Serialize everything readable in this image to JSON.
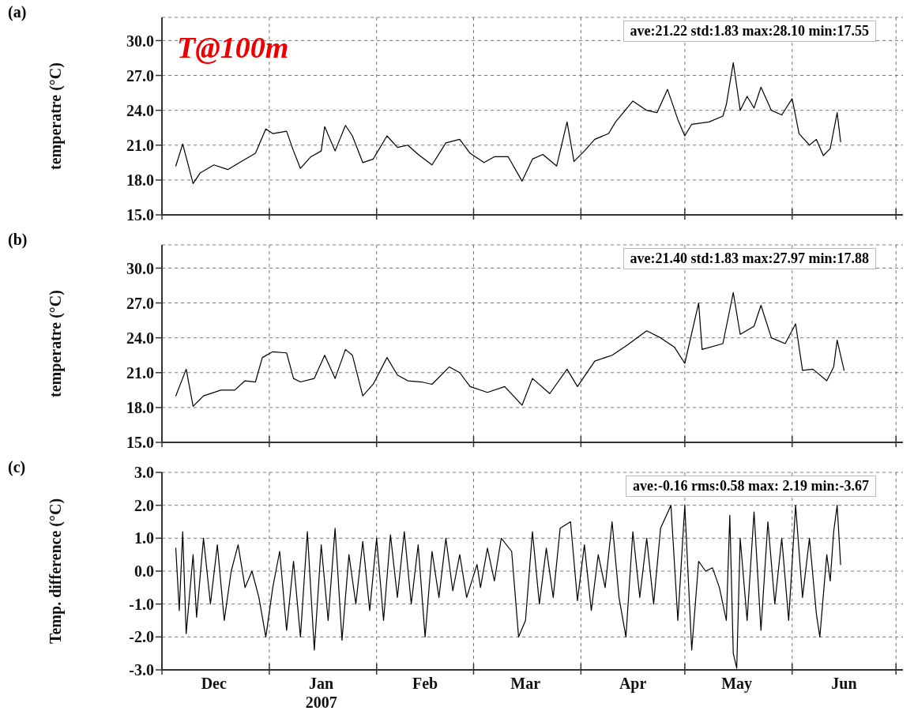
{
  "chart_data": [
    {
      "type": "line",
      "ylabel": "temperatre (°C)",
      "annotations": [
        "(a)",
        "ave:21.22 std:1.83 max:28.10 min:17.55",
        "T@100m"
      ],
      "series": [
        {
          "color": "#000000",
          "x": [
            "2006-12-05",
            "2006-12-07",
            "2006-12-10",
            "2006-12-12",
            "2006-12-16",
            "2006-12-20",
            "2006-12-24",
            "2006-12-28",
            "2006-12-31",
            "2007-01-02",
            "2007-01-06",
            "2007-01-08",
            "2007-01-10",
            "2007-01-13",
            "2007-01-16",
            "2007-01-17",
            "2007-01-20",
            "2007-01-23",
            "2007-01-25",
            "2007-01-28",
            "2007-01-31",
            "2007-02-04",
            "2007-02-07",
            "2007-02-10",
            "2007-02-13",
            "2007-02-17",
            "2007-02-21",
            "2007-02-25",
            "2007-02-28",
            "2007-03-04",
            "2007-03-07",
            "2007-03-11",
            "2007-03-15",
            "2007-03-18",
            "2007-03-21",
            "2007-03-25",
            "2007-03-28",
            "2007-03-30",
            "2007-04-02",
            "2007-04-05",
            "2007-04-09",
            "2007-04-11",
            "2007-04-16",
            "2007-04-20",
            "2007-04-23",
            "2007-04-26",
            "2007-04-29",
            "2007-05-01",
            "2007-05-03",
            "2007-05-08",
            "2007-05-12",
            "2007-05-13",
            "2007-05-15",
            "2007-05-17",
            "2007-05-19",
            "2007-05-21",
            "2007-05-23",
            "2007-05-26",
            "2007-05-29",
            "2007-06-01",
            "2007-06-03",
            "2007-06-06",
            "2007-06-08",
            "2007-06-10",
            "2007-06-12",
            "2007-06-14",
            "2007-06-15"
          ],
          "values": [
            19.2,
            21.1,
            17.7,
            18.6,
            19.3,
            18.9,
            19.6,
            20.3,
            22.4,
            22.0,
            22.2,
            20.5,
            19.0,
            20.0,
            20.5,
            22.6,
            20.5,
            22.7,
            21.8,
            19.5,
            19.8,
            21.8,
            20.8,
            21.0,
            20.2,
            19.3,
            21.2,
            21.5,
            20.3,
            19.5,
            20.0,
            20.0,
            17.9,
            19.8,
            20.2,
            19.2,
            23.0,
            19.6,
            20.5,
            21.5,
            22.0,
            23.0,
            24.8,
            24.0,
            23.8,
            25.8,
            23.2,
            21.8,
            22.8,
            23.0,
            23.5,
            24.5,
            28.1,
            24.0,
            25.2,
            24.2,
            26.0,
            24.0,
            23.6,
            25.0,
            22.0,
            21.0,
            21.5,
            20.1,
            20.7,
            23.8,
            21.3
          ]
        }
      ],
      "xlim": [
        "2006-12-01",
        "2007-07-03"
      ],
      "xticks": [
        {
          "value": "2006-12-01",
          "label": null
        },
        {
          "value": "2007-01-01",
          "label": null
        },
        {
          "value": "2007-02-01",
          "label": null
        },
        {
          "value": "2007-03-01",
          "label": null
        },
        {
          "value": "2007-04-01",
          "label": null
        },
        {
          "value": "2007-05-01",
          "label": null
        },
        {
          "value": "2007-06-01",
          "label": null
        },
        {
          "value": "2007-07-01",
          "label": null
        }
      ],
      "ylim": [
        15,
        32
      ],
      "yticks": [
        {
          "value": 15,
          "label": "15.0"
        },
        {
          "value": 18,
          "label": "18.0"
        },
        {
          "value": 21,
          "label": "21.0"
        },
        {
          "value": 24,
          "label": "24.0"
        },
        {
          "value": 27,
          "label": "27.0"
        },
        {
          "value": 30,
          "label": "30.0"
        }
      ],
      "grid": true,
      "tick_labels": "y"
    },
    {
      "type": "line",
      "ylabel": "temperatre (°C)",
      "annotations": [
        "(b)",
        "ave:21.40 std:1.83 max:27.97 min:17.88"
      ],
      "series": [
        {
          "color": "#000000",
          "x": [
            "2006-12-05",
            "2006-12-08",
            "2006-12-10",
            "2006-12-13",
            "2006-12-18",
            "2006-12-22",
            "2006-12-25",
            "2006-12-28",
            "2006-12-30",
            "2007-01-02",
            "2007-01-06",
            "2007-01-08",
            "2007-01-10",
            "2007-01-14",
            "2007-01-17",
            "2007-01-20",
            "2007-01-23",
            "2007-01-25",
            "2007-01-28",
            "2007-01-31",
            "2007-02-04",
            "2007-02-07",
            "2007-02-10",
            "2007-02-14",
            "2007-02-17",
            "2007-02-22",
            "2007-02-25",
            "2007-02-28",
            "2007-03-05",
            "2007-03-10",
            "2007-03-15",
            "2007-03-18",
            "2007-03-23",
            "2007-03-28",
            "2007-03-31",
            "2007-04-05",
            "2007-04-10",
            "2007-04-14",
            "2007-04-20",
            "2007-04-24",
            "2007-04-28",
            "2007-05-01",
            "2007-05-05",
            "2007-05-06",
            "2007-05-12",
            "2007-05-15",
            "2007-05-17",
            "2007-05-21",
            "2007-05-23",
            "2007-05-26",
            "2007-05-30",
            "2007-06-02",
            "2007-06-04",
            "2007-06-07",
            "2007-06-11",
            "2007-06-13",
            "2007-06-14",
            "2007-06-16"
          ],
          "values": [
            19.0,
            21.3,
            18.1,
            19.0,
            19.5,
            19.5,
            20.3,
            20.2,
            22.3,
            22.8,
            22.7,
            20.5,
            20.2,
            20.5,
            22.5,
            20.5,
            23.0,
            22.5,
            19.0,
            20.0,
            22.3,
            20.8,
            20.3,
            20.2,
            20.0,
            21.5,
            21.0,
            19.8,
            19.3,
            19.8,
            18.2,
            20.5,
            19.2,
            21.3,
            19.8,
            22.0,
            22.5,
            23.3,
            24.6,
            24.0,
            23.2,
            21.8,
            27.0,
            23.0,
            23.5,
            27.9,
            24.3,
            25.0,
            26.8,
            24.0,
            23.5,
            25.2,
            21.2,
            21.3,
            20.3,
            21.5,
            23.8,
            21.2
          ]
        }
      ],
      "xlim": [
        "2006-12-01",
        "2007-07-03"
      ],
      "xticks": [
        {
          "value": "2006-12-01",
          "label": null
        },
        {
          "value": "2007-01-01",
          "label": null
        },
        {
          "value": "2007-02-01",
          "label": null
        },
        {
          "value": "2007-03-01",
          "label": null
        },
        {
          "value": "2007-04-01",
          "label": null
        },
        {
          "value": "2007-05-01",
          "label": null
        },
        {
          "value": "2007-06-01",
          "label": null
        },
        {
          "value": "2007-07-01",
          "label": null
        }
      ],
      "ylim": [
        15,
        32
      ],
      "yticks": [
        {
          "value": 15,
          "label": "15.0"
        },
        {
          "value": 18,
          "label": "18.0"
        },
        {
          "value": 21,
          "label": "21.0"
        },
        {
          "value": 24,
          "label": "24.0"
        },
        {
          "value": 27,
          "label": "27.0"
        },
        {
          "value": 30,
          "label": "30.0"
        }
      ],
      "grid": true,
      "tick_labels": "y"
    },
    {
      "type": "line",
      "ylabel": "Temp. difference (°C)",
      "annotations": [
        "(c)",
        "ave:-0.16 rms:0.58 max: 2.19 min:-3.67"
      ],
      "series": [
        {
          "color": "#000000",
          "x": [
            "2006-12-05",
            "2006-12-06",
            "2006-12-07",
            "2006-12-08",
            "2006-12-10",
            "2006-12-11",
            "2006-12-13",
            "2006-12-15",
            "2006-12-17",
            "2006-12-19",
            "2006-12-21",
            "2006-12-23",
            "2006-12-25",
            "2006-12-27",
            "2006-12-29",
            "2006-12-31",
            "2007-01-02",
            "2007-01-04",
            "2007-01-06",
            "2007-01-08",
            "2007-01-10",
            "2007-01-12",
            "2007-01-14",
            "2007-01-16",
            "2007-01-18",
            "2007-01-20",
            "2007-01-22",
            "2007-01-24",
            "2007-01-26",
            "2007-01-28",
            "2007-01-30",
            "2007-02-01",
            "2007-02-03",
            "2007-02-05",
            "2007-02-07",
            "2007-02-09",
            "2007-02-11",
            "2007-02-13",
            "2007-02-15",
            "2007-02-17",
            "2007-02-19",
            "2007-02-21",
            "2007-02-23",
            "2007-02-25",
            "2007-02-27",
            "2007-03-02",
            "2007-03-03",
            "2007-03-05",
            "2007-03-07",
            "2007-03-09",
            "2007-03-12",
            "2007-03-14",
            "2007-03-16",
            "2007-03-18",
            "2007-03-20",
            "2007-03-22",
            "2007-03-24",
            "2007-03-26",
            "2007-03-29",
            "2007-03-31",
            "2007-04-02",
            "2007-04-04",
            "2007-04-06",
            "2007-04-08",
            "2007-04-10",
            "2007-04-12",
            "2007-04-14",
            "2007-04-16",
            "2007-04-18",
            "2007-04-20",
            "2007-04-22",
            "2007-04-24",
            "2007-04-27",
            "2007-04-29",
            "2007-05-01",
            "2007-05-03",
            "2007-05-05",
            "2007-05-07",
            "2007-05-09",
            "2007-05-11",
            "2007-05-13",
            "2007-05-14",
            "2007-05-15",
            "2007-05-16",
            "2007-05-17",
            "2007-05-19",
            "2007-05-21",
            "2007-05-23",
            "2007-05-25",
            "2007-05-27",
            "2007-05-29",
            "2007-05-31",
            "2007-06-02",
            "2007-06-04",
            "2007-06-06",
            "2007-06-08",
            "2007-06-09",
            "2007-06-11",
            "2007-06-12",
            "2007-06-13",
            "2007-06-14",
            "2007-06-15"
          ],
          "values": [
            0.7,
            -1.2,
            1.2,
            -1.9,
            0.5,
            -1.4,
            1.0,
            -1.0,
            0.8,
            -1.5,
            0.0,
            0.8,
            -0.5,
            0.0,
            -0.8,
            -2.0,
            -0.5,
            0.6,
            -1.8,
            0.3,
            -2.0,
            1.2,
            -2.4,
            0.8,
            -1.5,
            1.3,
            -2.1,
            0.5,
            -1.0,
            0.9,
            -1.2,
            1.0,
            -1.5,
            1.1,
            -0.8,
            1.2,
            -1.0,
            0.8,
            -2.0,
            0.6,
            -0.8,
            1.0,
            -0.6,
            0.5,
            -0.8,
            0.2,
            -0.5,
            0.7,
            -0.3,
            1.0,
            0.6,
            -2.0,
            -1.5,
            1.2,
            -1.0,
            0.7,
            -0.8,
            1.3,
            1.5,
            -0.9,
            0.8,
            -1.2,
            0.5,
            -0.5,
            1.5,
            -0.8,
            -2.0,
            1.2,
            -0.8,
            1.0,
            -1.0,
            1.3,
            2.0,
            -1.5,
            2.0,
            -2.4,
            0.3,
            0.0,
            0.1,
            -0.5,
            -1.5,
            1.7,
            -2.5,
            -2.95,
            1.0,
            -1.5,
            1.8,
            -1.8,
            1.5,
            -1.0,
            1.0,
            -1.5,
            2.0,
            -0.8,
            1.0,
            -1.3,
            -2.0,
            0.5,
            -0.3,
            1.2,
            2.0,
            0.2
          ]
        }
      ],
      "xlim": [
        "2006-12-01",
        "2007-07-03"
      ],
      "xticks": [
        {
          "value": "2006-12-01",
          "label": null
        },
        {
          "value": "2006-12-16",
          "label": "Dec"
        },
        {
          "value": "2007-01-01",
          "label": null
        },
        {
          "value": "2007-01-16",
          "label": "Jan\n2007"
        },
        {
          "value": "2007-02-01",
          "label": null
        },
        {
          "value": "2007-02-15",
          "label": "Feb"
        },
        {
          "value": "2007-03-01",
          "label": null
        },
        {
          "value": "2007-03-16",
          "label": "Mar"
        },
        {
          "value": "2007-04-01",
          "label": null
        },
        {
          "value": "2007-04-16",
          "label": "Apr"
        },
        {
          "value": "2007-05-01",
          "label": null
        },
        {
          "value": "2007-05-16",
          "label": "May"
        },
        {
          "value": "2007-06-01",
          "label": null
        },
        {
          "value": "2007-06-16",
          "label": "Jun"
        },
        {
          "value": "2007-07-01",
          "label": null
        }
      ],
      "ylim": [
        -3,
        3
      ],
      "yticks": [
        {
          "value": -3,
          "label": "-3.0"
        },
        {
          "value": -2,
          "label": "-2.0"
        },
        {
          "value": -1,
          "label": "-1.0"
        },
        {
          "value": 0,
          "label": "0.0"
        },
        {
          "value": 1,
          "label": "1.0"
        },
        {
          "value": 2,
          "label": "2.0"
        },
        {
          "value": 3,
          "label": "3.0"
        }
      ],
      "grid": true
    }
  ]
}
